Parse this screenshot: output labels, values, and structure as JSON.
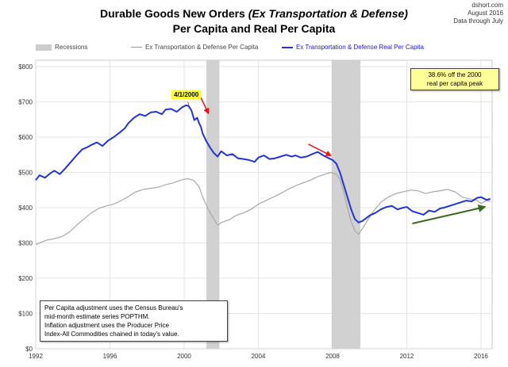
{
  "source": {
    "site": "dshort.com",
    "month": "August  2016",
    "note": "Data through July"
  },
  "title": {
    "line1_plain": "Durable Goods New Orders ",
    "line1_italic": "(Ex Transportation & Defense)",
    "line2": "Per Capita and Real Per Capita"
  },
  "legend": {
    "recessions": "Recessions",
    "ex_per_capita": "Ex Transportation & Defense Per Capita",
    "ex_real_per_capita": "Ex Transportation & Defense Real Per Capita"
  },
  "annotations": {
    "peak_date": "4/1/2000",
    "callout_line1": "38.6% off the 2000",
    "callout_line2": "real per capita peak",
    "note_line1": "Per Capita adjustment uses the Census Bureau's",
    "note_line2": "mid-month estimate series POPTHM.",
    "note_line3": "Inflation adjustment uses the Producer Price",
    "note_line4": "Index-All Commodities chained in today's value."
  },
  "colors": {
    "real_series": "#2233dd",
    "nominal_series": "#a8a8a8",
    "recession": "#cccccc",
    "red_arrow": "#ee1111",
    "green_arrow": "#3a6b1e",
    "callout_bg": "#ffff99",
    "date_label_bg": "#ffff33"
  },
  "chart_data": {
    "type": "line",
    "y_unit": "$",
    "ylim": [
      0,
      800
    ],
    "xlim": [
      1992.0,
      2016.6
    ],
    "y_ticks": [
      {
        "value": 0,
        "label": "$0"
      },
      {
        "value": 100,
        "label": "$100"
      },
      {
        "value": 200,
        "label": "$200"
      },
      {
        "value": 300,
        "label": "$300"
      },
      {
        "value": 400,
        "label": "$400"
      },
      {
        "value": 500,
        "label": "$500"
      },
      {
        "value": 600,
        "label": "$600"
      },
      {
        "value": 700,
        "label": "$700"
      },
      {
        "value": 800,
        "label": "$800"
      }
    ],
    "x_ticks": [
      {
        "value": 1992,
        "label": "1992"
      },
      {
        "value": 1996,
        "label": "1996"
      },
      {
        "value": 2000,
        "label": "2000"
      },
      {
        "value": 2004,
        "label": "2004"
      },
      {
        "value": 2008,
        "label": "2008"
      },
      {
        "value": 2012,
        "label": "2012"
      },
      {
        "value": 2016,
        "label": "2016"
      }
    ],
    "grid": true,
    "recessions": [
      {
        "start": 2001.2,
        "end": 2001.9
      },
      {
        "start": 2007.95,
        "end": 2009.5
      }
    ],
    "series": [
      {
        "name": "Ex Transportation & Defense Real Per Capita",
        "x": [
          1992.0,
          1992.2,
          1992.5,
          1992.8,
          1993.0,
          1993.3,
          1993.6,
          1993.9,
          1994.2,
          1994.5,
          1994.8,
          1995.0,
          1995.3,
          1995.6,
          1995.9,
          1996.2,
          1996.5,
          1996.8,
          1997.0,
          1997.3,
          1997.6,
          1997.9,
          1998.2,
          1998.5,
          1998.8,
          1999.0,
          1999.3,
          1999.6,
          1999.9,
          2000.1,
          2000.25,
          2000.4,
          2000.55,
          2000.7,
          2000.8,
          2000.9,
          2001.0,
          2001.2,
          2001.4,
          2001.6,
          2001.8,
          2002.0,
          2002.3,
          2002.6,
          2002.9,
          2003.2,
          2003.5,
          2003.8,
          2004.0,
          2004.3,
          2004.6,
          2004.9,
          2005.2,
          2005.5,
          2005.8,
          2006.0,
          2006.3,
          2006.6,
          2006.9,
          2007.2,
          2007.5,
          2007.8,
          2008.0,
          2008.2,
          2008.4,
          2008.6,
          2008.8,
          2009.0,
          2009.2,
          2009.4,
          2009.6,
          2009.8,
          2010.0,
          2010.3,
          2010.6,
          2010.9,
          2011.2,
          2011.5,
          2011.8,
          2012.0,
          2012.3,
          2012.6,
          2012.9,
          2013.2,
          2013.5,
          2013.8,
          2014.0,
          2014.3,
          2014.6,
          2014.9,
          2015.2,
          2015.5,
          2015.8,
          2016.0,
          2016.3,
          2016.5
        ],
        "values": [
          478,
          492,
          485,
          498,
          505,
          495,
          512,
          530,
          548,
          565,
          572,
          578,
          585,
          575,
          590,
          600,
          612,
          625,
          640,
          655,
          665,
          660,
          670,
          672,
          665,
          678,
          680,
          672,
          685,
          690,
          688,
          675,
          648,
          655,
          640,
          630,
          610,
          588,
          570,
          555,
          545,
          560,
          548,
          552,
          540,
          538,
          535,
          530,
          542,
          548,
          538,
          540,
          545,
          550,
          545,
          548,
          542,
          545,
          552,
          558,
          548,
          540,
          535,
          525,
          500,
          465,
          430,
          395,
          368,
          358,
          362,
          370,
          378,
          385,
          395,
          402,
          405,
          395,
          400,
          402,
          390,
          385,
          380,
          392,
          388,
          398,
          400,
          405,
          410,
          415,
          420,
          418,
          428,
          430,
          422,
          425
        ]
      },
      {
        "name": "Ex Transportation & Defense Per Capita",
        "x": [
          1992.0,
          1992.3,
          1992.6,
          1993.0,
          1993.4,
          1993.8,
          1994.2,
          1994.6,
          1995.0,
          1995.4,
          1995.8,
          1996.2,
          1996.6,
          1997.0,
          1997.4,
          1997.8,
          1998.2,
          1998.6,
          1999.0,
          1999.4,
          1999.8,
          2000.2,
          2000.5,
          2000.8,
          2001.0,
          2001.3,
          2001.6,
          2001.8,
          2002.0,
          2002.4,
          2002.8,
          2003.2,
          2003.6,
          2004.0,
          2004.4,
          2004.8,
          2005.2,
          2005.6,
          2006.0,
          2006.4,
          2006.8,
          2007.2,
          2007.6,
          2007.9,
          2008.2,
          2008.4,
          2008.6,
          2008.8,
          2009.0,
          2009.2,
          2009.4,
          2009.6,
          2009.9,
          2010.2,
          2010.6,
          2011.0,
          2011.4,
          2011.8,
          2012.2,
          2012.6,
          2013.0,
          2013.4,
          2013.8,
          2014.2,
          2014.6,
          2015.0,
          2015.4,
          2015.8,
          2016.0,
          2016.3,
          2016.5
        ],
        "values": [
          295,
          302,
          308,
          312,
          318,
          330,
          350,
          368,
          385,
          398,
          405,
          410,
          420,
          432,
          445,
          452,
          455,
          458,
          465,
          470,
          478,
          482,
          478,
          460,
          430,
          395,
          368,
          350,
          358,
          365,
          378,
          385,
          395,
          410,
          420,
          430,
          440,
          452,
          462,
          470,
          478,
          488,
          495,
          500,
          495,
          480,
          445,
          400,
          360,
          335,
          325,
          340,
          365,
          390,
          415,
          430,
          440,
          445,
          450,
          448,
          440,
          445,
          448,
          452,
          445,
          430,
          425,
          420,
          412,
          420,
          418
        ]
      }
    ]
  }
}
